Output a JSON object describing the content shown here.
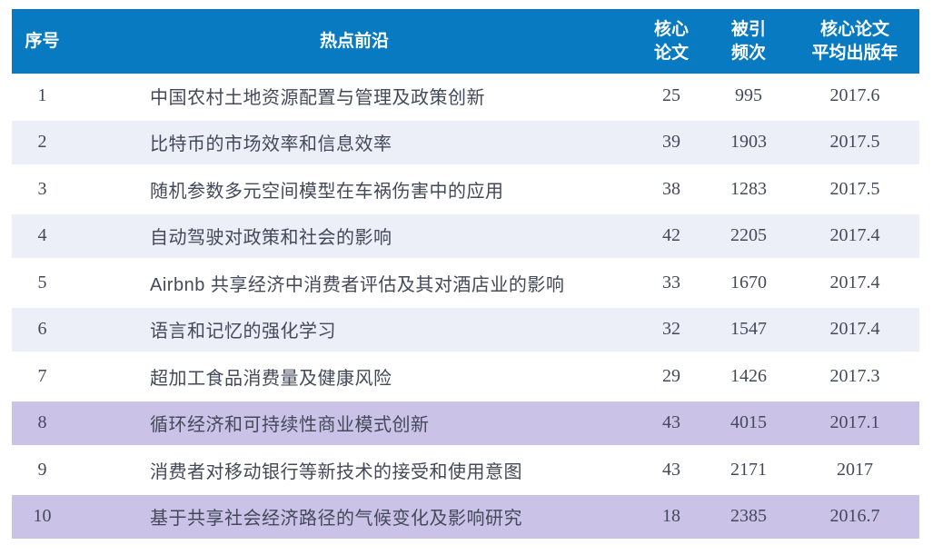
{
  "chart_data": {
    "type": "table",
    "title": "",
    "columns": {
      "index_label": "序号",
      "topic_label": "热点前沿",
      "core_label": "核心\n论文",
      "cites_label": "被引\n频次",
      "year_label": "核心论文\n平均出版年"
    },
    "rows": [
      {
        "no": "1",
        "topic": "中国农村土地资源配置与管理及政策创新",
        "core_papers": "25",
        "citations": "995",
        "avg_year": "2017.6"
      },
      {
        "no": "2",
        "topic": "比特币的市场效率和信息效率",
        "core_papers": "39",
        "citations": "1903",
        "avg_year": "2017.5"
      },
      {
        "no": "3",
        "topic": "随机参数多元空间模型在车祸伤害中的应用",
        "core_papers": "38",
        "citations": "1283",
        "avg_year": "2017.5"
      },
      {
        "no": "4",
        "topic": "自动驾驶对政策和社会的影响",
        "core_papers": "42",
        "citations": "2205",
        "avg_year": "2017.4"
      },
      {
        "no": "5",
        "topic": "Airbnb 共享经济中消费者评估及其对酒店业的影响",
        "core_papers": "33",
        "citations": "1670",
        "avg_year": "2017.4"
      },
      {
        "no": "6",
        "topic": "语言和记忆的强化学习",
        "core_papers": "32",
        "citations": "1547",
        "avg_year": "2017.4"
      },
      {
        "no": "7",
        "topic": "超加工食品消费量及健康风险",
        "core_papers": "29",
        "citations": "1426",
        "avg_year": "2017.3"
      },
      {
        "no": "8",
        "topic": "循环经济和可持续性商业模式创新",
        "core_papers": "43",
        "citations": "4015",
        "avg_year": "2017.1"
      },
      {
        "no": "9",
        "topic": "消费者对移动银行等新技术的接受和使用意图",
        "core_papers": "43",
        "citations": "2171",
        "avg_year": "2017"
      },
      {
        "no": "10",
        "topic": "基于共享社会经济路径的气候变化及影响研究",
        "core_papers": "18",
        "citations": "2385",
        "avg_year": "2016.7"
      }
    ],
    "highlighted_rows": [
      8,
      10
    ],
    "alternate_shaded_rows": [
      2,
      4,
      6
    ],
    "layout_hints": {
      "grid": false,
      "header_position": "top"
    }
  },
  "theme": {
    "header_bg": "#077AC1",
    "header_text": "#FFFFFF",
    "row_alt_bg": "#ECEEF8",
    "row_hl_bg": "#CBC2E8",
    "text": "#434959"
  }
}
